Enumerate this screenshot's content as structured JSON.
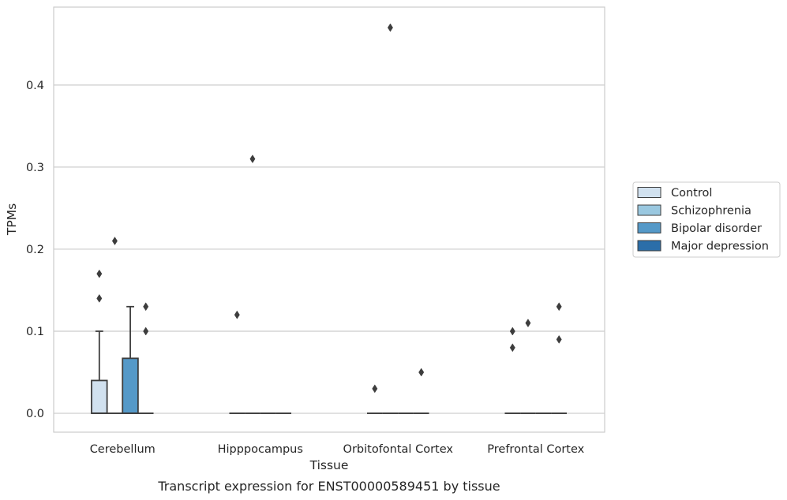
{
  "chart_data": {
    "type": "box",
    "xlabel": "Tissue",
    "ylabel": "TPMs",
    "caption": "Transcript expression for ENST00000589451 by tissue",
    "ylim": [
      -0.023,
      0.495
    ],
    "yticks": [
      0.0,
      0.1,
      0.2,
      0.3,
      0.4
    ],
    "ytick_labels": [
      "0.0",
      "0.1",
      "0.2",
      "0.3",
      "0.4"
    ],
    "grid": "horizontal",
    "legend_position": "right",
    "categories": [
      "Cerebellum",
      "Hipppocampus",
      "Orbitofontal Cortex",
      "Prefrontal Cortex"
    ],
    "series": [
      {
        "name": "Control",
        "color": "#d1e1ef",
        "boxes": [
          {
            "q1": 0.0,
            "median": 0.0,
            "q3": 0.04,
            "whisker_low": 0.0,
            "whisker_high": 0.1,
            "outliers": [
              0.17,
              0.14
            ]
          },
          {
            "q1": 0.0,
            "median": 0.0,
            "q3": 0.0,
            "whisker_low": 0.0,
            "whisker_high": 0.0,
            "outliers": [
              0.12
            ]
          },
          {
            "q1": 0.0,
            "median": 0.0,
            "q3": 0.0,
            "whisker_low": 0.0,
            "whisker_high": 0.0,
            "outliers": [
              0.03
            ]
          },
          {
            "q1": 0.0,
            "median": 0.0,
            "q3": 0.0,
            "whisker_low": 0.0,
            "whisker_high": 0.0,
            "outliers": [
              0.1,
              0.08
            ]
          }
        ]
      },
      {
        "name": "Schizophrenia",
        "color": "#9ac8e0",
        "boxes": [
          {
            "q1": 0.0,
            "median": 0.0,
            "q3": 0.0,
            "whisker_low": 0.0,
            "whisker_high": 0.0,
            "outliers": [
              0.21
            ]
          },
          {
            "q1": 0.0,
            "median": 0.0,
            "q3": 0.0,
            "whisker_low": 0.0,
            "whisker_high": 0.0,
            "outliers": [
              0.31
            ]
          },
          {
            "q1": 0.0,
            "median": 0.0,
            "q3": 0.0,
            "whisker_low": 0.0,
            "whisker_high": 0.0,
            "outliers": [
              0.47
            ]
          },
          {
            "q1": 0.0,
            "median": 0.0,
            "q3": 0.0,
            "whisker_low": 0.0,
            "whisker_high": 0.0,
            "outliers": [
              0.11
            ]
          }
        ]
      },
      {
        "name": "Bipolar disorder",
        "color": "#5599c8",
        "boxes": [
          {
            "q1": 0.0,
            "median": 0.0,
            "q3": 0.067,
            "whisker_low": 0.0,
            "whisker_high": 0.13,
            "outliers": []
          },
          {
            "q1": 0.0,
            "median": 0.0,
            "q3": 0.0,
            "whisker_low": 0.0,
            "whisker_high": 0.0,
            "outliers": []
          },
          {
            "q1": 0.0,
            "median": 0.0,
            "q3": 0.0,
            "whisker_low": 0.0,
            "whisker_high": 0.0,
            "outliers": []
          },
          {
            "q1": 0.0,
            "median": 0.0,
            "q3": 0.0,
            "whisker_low": 0.0,
            "whisker_high": 0.0,
            "outliers": []
          }
        ]
      },
      {
        "name": "Major depression",
        "color": "#2b6ea9",
        "boxes": [
          {
            "q1": 0.0,
            "median": 0.0,
            "q3": 0.0,
            "whisker_low": 0.0,
            "whisker_high": 0.0,
            "outliers": [
              0.13,
              0.1
            ]
          },
          {
            "q1": 0.0,
            "median": 0.0,
            "q3": 0.0,
            "whisker_low": 0.0,
            "whisker_high": 0.0,
            "outliers": []
          },
          {
            "q1": 0.0,
            "median": 0.0,
            "q3": 0.0,
            "whisker_low": 0.0,
            "whisker_high": 0.0,
            "outliers": [
              0.05
            ]
          },
          {
            "q1": 0.0,
            "median": 0.0,
            "q3": 0.0,
            "whisker_low": 0.0,
            "whisker_high": 0.0,
            "outliers": [
              0.13,
              0.09
            ]
          }
        ]
      }
    ]
  }
}
